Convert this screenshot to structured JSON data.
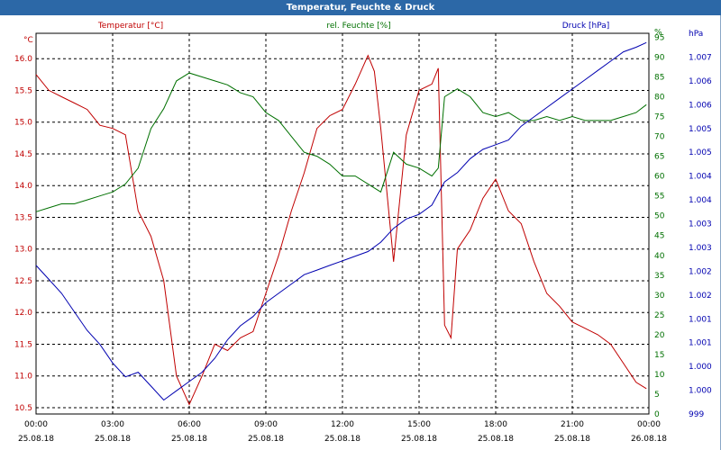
{
  "window": {
    "title": "Temperatur, Feuchte & Druck"
  },
  "chart_data": {
    "type": "line",
    "title": "Temperatur, Feuchte & Druck",
    "grid": true,
    "x_range": [
      "25.08.18 00:00",
      "26.08.18 00:00"
    ],
    "x_ticks": [
      {
        "time": "00:00",
        "date": "25.08.18"
      },
      {
        "time": "03:00",
        "date": "25.08.18"
      },
      {
        "time": "06:00",
        "date": "25.08.18"
      },
      {
        "time": "09:00",
        "date": "25.08.18"
      },
      {
        "time": "12:00",
        "date": "25.08.18"
      },
      {
        "time": "15:00",
        "date": "25.08.18"
      },
      {
        "time": "18:00",
        "date": "25.08.18"
      },
      {
        "time": "21:00",
        "date": "25.08.18"
      },
      {
        "time": "00:00",
        "date": "26.08.18"
      }
    ],
    "axes": {
      "temperature": {
        "label": "Temperatur [°C]",
        "unit": "°C",
        "ylim": [
          10.4,
          16.4
        ],
        "ticks": [
          "10.5",
          "11.0",
          "11.5",
          "12.0",
          "12.5",
          "13.0",
          "13.5",
          "14.0",
          "14.5",
          "15.0",
          "15.5",
          "16.0"
        ],
        "color": "#c00000"
      },
      "humidity": {
        "label": "rel. Feuchte [%]",
        "unit": "%",
        "ylim": [
          0,
          96
        ],
        "ticks": [
          "0",
          "5",
          "10",
          "15",
          "20",
          "25",
          "30",
          "35",
          "40",
          "45",
          "50",
          "55",
          "60",
          "65",
          "70",
          "75",
          "80",
          "85",
          "90",
          "95",
          "%"
        ],
        "color": "#007000"
      },
      "pressure": {
        "label": "Druck [hPa]",
        "unit": "hPa",
        "ylim": [
          999.0,
          1007.2
        ],
        "ticks": [
          "999",
          "1.000",
          "1.000",
          "1.001",
          "1.001",
          "1.002",
          "1.002",
          "1.003",
          "1.003",
          "1.004",
          "1.004",
          "1.005",
          "1.005",
          "1.006",
          "1.006",
          "1.007",
          "hPa"
        ],
        "color": "#0000b0"
      }
    },
    "series": [
      {
        "name": "Temperatur [°C]",
        "axis": "temperature",
        "color": "#c00000",
        "x": [
          0,
          0.5,
          1,
          1.5,
          2,
          2.5,
          3,
          3.5,
          4,
          4.5,
          5,
          5.5,
          6,
          6.5,
          7,
          7.5,
          8,
          8.5,
          9,
          9.5,
          10,
          10.5,
          11,
          11.5,
          12,
          12.5,
          13,
          13.25,
          13.5,
          14,
          14.5,
          15,
          15.5,
          15.75,
          16,
          16.25,
          16.5,
          17,
          17.5,
          18,
          18.5,
          19,
          19.5,
          20,
          20.5,
          21,
          21.5,
          22,
          22.5,
          23,
          23.5,
          23.9
        ],
        "y": [
          15.75,
          15.5,
          15.4,
          15.3,
          15.2,
          14.95,
          14.9,
          14.8,
          13.6,
          13.2,
          12.5,
          11.0,
          10.55,
          11.0,
          11.5,
          11.4,
          11.6,
          11.7,
          12.3,
          12.9,
          13.6,
          14.2,
          14.9,
          15.1,
          15.2,
          15.6,
          16.05,
          15.8,
          14.9,
          12.8,
          14.8,
          15.5,
          15.6,
          15.85,
          11.8,
          11.6,
          13.0,
          13.3,
          13.8,
          14.1,
          13.6,
          13.4,
          12.8,
          12.3,
          12.1,
          11.85,
          11.75,
          11.65,
          11.5,
          11.2,
          10.9,
          10.8
        ]
      },
      {
        "name": "rel. Feuchte [%]",
        "axis": "humidity",
        "color": "#007000",
        "x": [
          0,
          0.5,
          1,
          1.5,
          2,
          2.5,
          3,
          3.5,
          4,
          4.5,
          5,
          5.5,
          6,
          6.5,
          7,
          7.5,
          8,
          8.5,
          9,
          9.5,
          10,
          10.5,
          11,
          11.5,
          12,
          12.5,
          13,
          13.5,
          14,
          14.5,
          15,
          15.5,
          15.75,
          16,
          16.5,
          17,
          17.5,
          18,
          18.5,
          19,
          19.5,
          20,
          20.5,
          21,
          21.5,
          22,
          22.5,
          23,
          23.5,
          23.9
        ],
        "y": [
          51,
          52,
          53,
          53,
          54,
          55,
          56,
          58,
          62,
          72,
          77,
          84,
          86,
          85,
          84,
          83,
          81,
          80,
          76,
          74,
          70,
          66,
          65,
          63,
          60,
          60,
          58,
          56,
          66,
          63,
          62,
          60,
          62,
          80,
          82,
          80,
          76,
          75,
          76,
          74,
          74,
          75,
          74,
          75,
          74,
          74,
          74,
          75,
          76,
          78
        ]
      },
      {
        "name": "Druck [hPa]",
        "axis": "pressure",
        "color": "#0000b0",
        "x": [
          0,
          0.5,
          1,
          1.5,
          2,
          2.5,
          3,
          3.5,
          4,
          4.5,
          5,
          5.5,
          6,
          6.5,
          7,
          7.5,
          8,
          8.5,
          9,
          9.5,
          10,
          10.5,
          11,
          11.5,
          12,
          12.5,
          13,
          13.5,
          14,
          14.5,
          15,
          15.5,
          16,
          16.5,
          17,
          17.5,
          18,
          18.5,
          19,
          19.5,
          20,
          20.5,
          21,
          21.5,
          22,
          22.5,
          23,
          23.5,
          23.9
        ],
        "y": [
          1002.2,
          1001.9,
          1001.6,
          1001.2,
          1000.8,
          1000.5,
          1000.1,
          999.8,
          999.9,
          999.6,
          999.3,
          999.5,
          999.7,
          999.9,
          1000.2,
          1000.6,
          1000.9,
          1001.1,
          1001.4,
          1001.6,
          1001.8,
          1002.0,
          1002.1,
          1002.2,
          1002.3,
          1002.4,
          1002.5,
          1002.7,
          1003.0,
          1003.2,
          1003.3,
          1003.5,
          1004.0,
          1004.2,
          1004.5,
          1004.7,
          1004.8,
          1004.9,
          1005.2,
          1005.4,
          1005.6,
          1005.8,
          1006.0,
          1006.2,
          1006.4,
          1006.6,
          1006.8,
          1006.9,
          1007.0
        ]
      }
    ]
  }
}
